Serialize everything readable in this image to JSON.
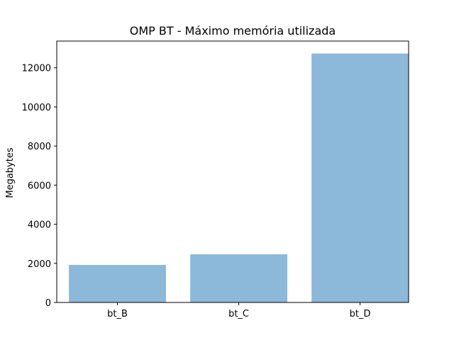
{
  "chart_data": {
    "type": "bar",
    "title": "OMP BT - Máximo memória utilizada",
    "xlabel": "",
    "ylabel": "Megabytes",
    "categories": [
      "bt_B",
      "bt_C",
      "bt_D"
    ],
    "values": [
      1920,
      2460,
      12730
    ],
    "ylim": [
      0,
      13366.5
    ],
    "yticks": [
      0,
      2000,
      4000,
      6000,
      8000,
      10000,
      12000
    ],
    "bar_color": "#8cb8d9",
    "grid": false,
    "legend": "none"
  }
}
